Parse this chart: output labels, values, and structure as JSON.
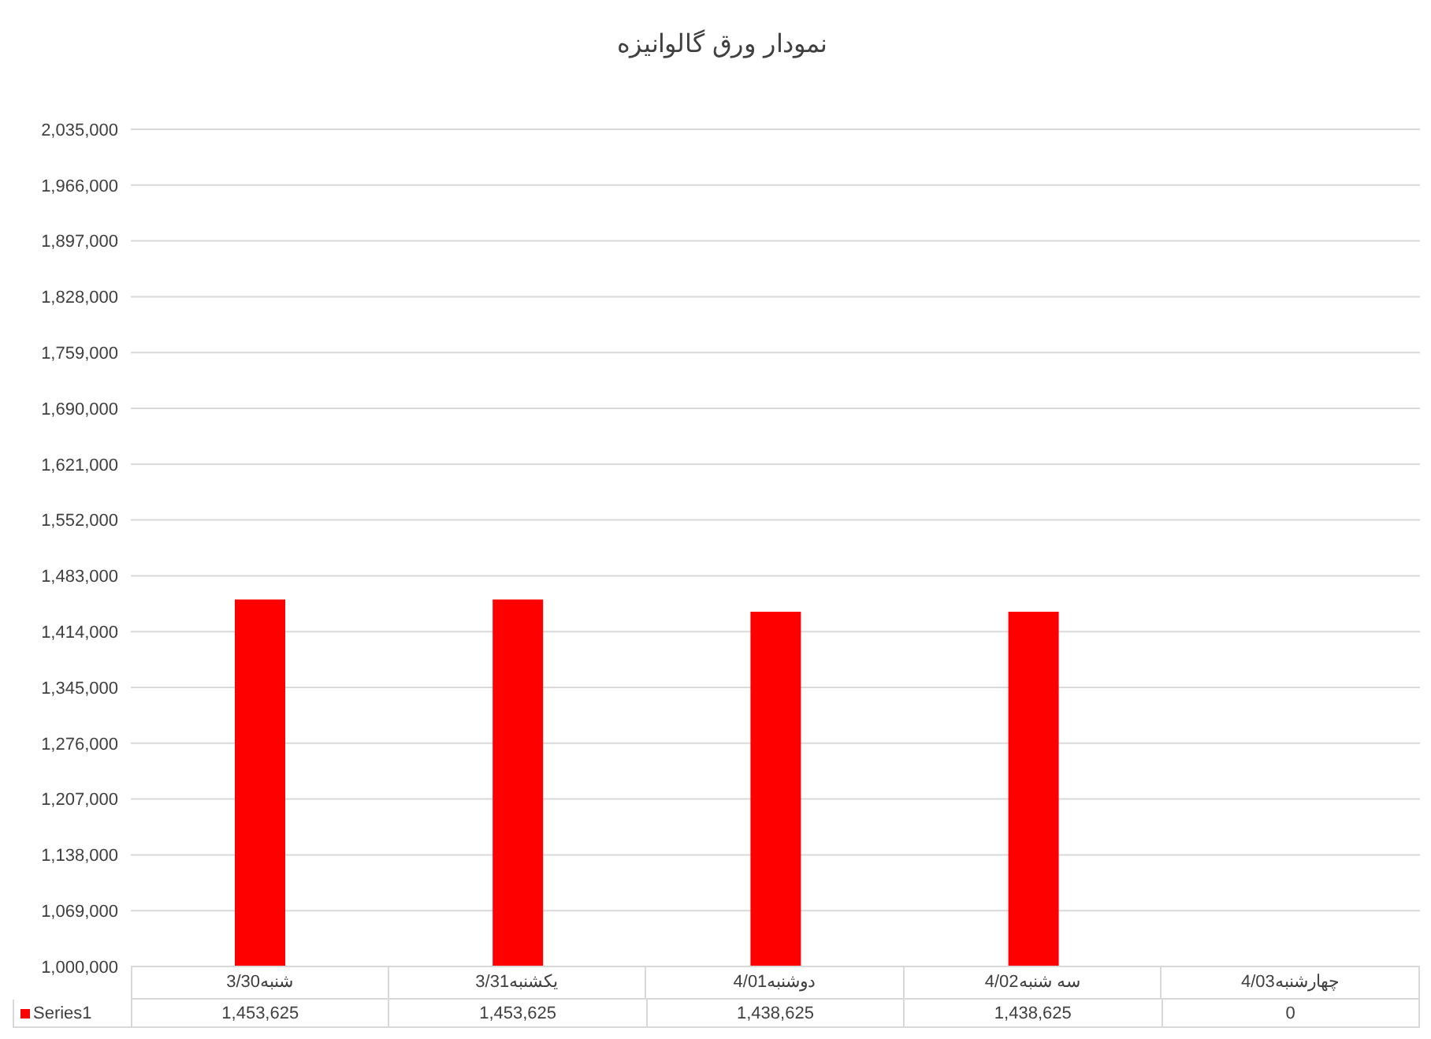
{
  "chart_data": {
    "type": "bar",
    "title": "نمودار ورق گالوانیزه",
    "categories": [
      "شنبه3/30",
      "یکشنبه3/31",
      "دوشنبه4/01",
      "سه شنبه4/02",
      "چهارشنبه4/03"
    ],
    "series": [
      {
        "name": "Series1",
        "color": "#ff0000",
        "values": [
          1453625,
          1453625,
          1438625,
          1438625,
          null
        ],
        "value_labels": [
          "1,453,625",
          "1,453,625",
          "1,438,625",
          "1,438,625",
          "0"
        ]
      }
    ],
    "ylim": [
      1000000,
      2035000
    ],
    "yticks": [
      {
        "value": 1000000,
        "label": "1,000,000"
      },
      {
        "value": 1069000,
        "label": "1,069,000"
      },
      {
        "value": 1138000,
        "label": "1,138,000"
      },
      {
        "value": 1207000,
        "label": "1,207,000"
      },
      {
        "value": 1276000,
        "label": "1,276,000"
      },
      {
        "value": 1345000,
        "label": "1,345,000"
      },
      {
        "value": 1414000,
        "label": "1,414,000"
      },
      {
        "value": 1483000,
        "label": "1,483,000"
      },
      {
        "value": 1552000,
        "label": "1,552,000"
      },
      {
        "value": 1621000,
        "label": "1,621,000"
      },
      {
        "value": 1690000,
        "label": "1,690,000"
      },
      {
        "value": 1759000,
        "label": "1,759,000"
      },
      {
        "value": 1828000,
        "label": "1,828,000"
      },
      {
        "value": 1897000,
        "label": "1,897,000"
      },
      {
        "value": 1966000,
        "label": "1,966,000"
      },
      {
        "value": 2035000,
        "label": "2,035,000"
      }
    ],
    "grid": "y",
    "legend": "bottom"
  }
}
